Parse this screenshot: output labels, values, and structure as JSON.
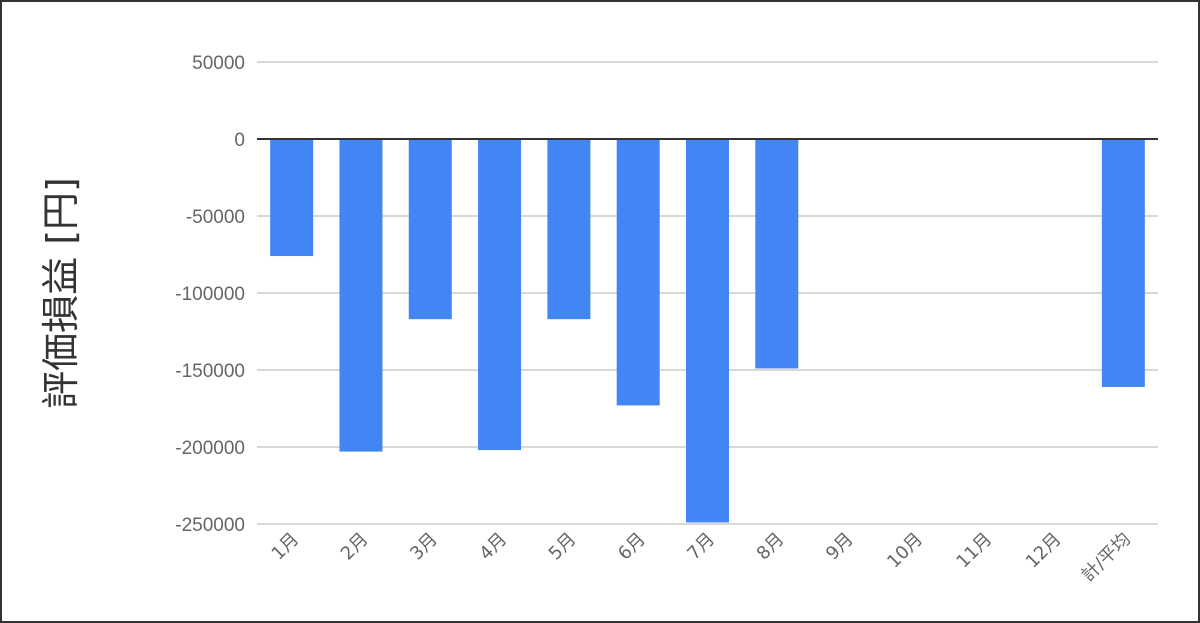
{
  "chart_data": {
    "type": "bar",
    "title": "",
    "xlabel": "",
    "ylabel": "評価損益 [円]",
    "categories": [
      "1月",
      "2月",
      "3月",
      "4月",
      "5月",
      "6月",
      "7月",
      "8月",
      "9月",
      "10月",
      "11月",
      "12月",
      "計/平均"
    ],
    "series": [
      {
        "values": [
          -76000,
          -203000,
          -117000,
          -202000,
          -117000,
          -173000,
          -249000,
          -149000,
          null,
          null,
          null,
          null,
          -161000
        ]
      }
    ],
    "ylim": [
      -250000,
      50000
    ],
    "yticks": [
      50000,
      0,
      -50000,
      -100000,
      -150000,
      -200000,
      -250000
    ],
    "grid": true,
    "legend": "none",
    "colors": {
      "bar": "#4285f4",
      "grid": "#cccccc",
      "zero_line": "#333333",
      "tick_text": "#666666"
    }
  }
}
